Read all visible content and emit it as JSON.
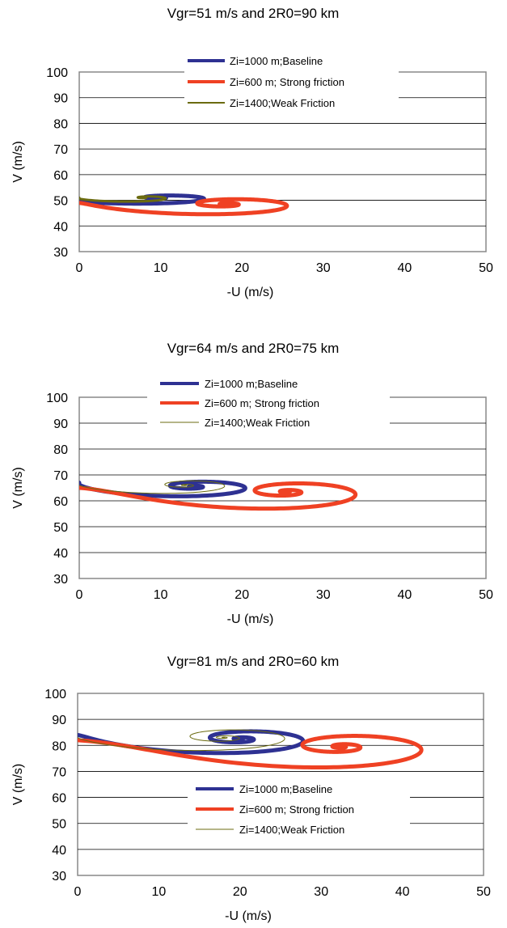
{
  "colors": {
    "baseline": "#2e3192",
    "strong": "#ef4123",
    "weak": "#6b6b10",
    "grid": "#000000",
    "frame": "#888888"
  },
  "chart_data": [
    {
      "type": "line",
      "title": "Vgr=51 m/s and 2R0=90 km",
      "xlabel": "-U (m/s)",
      "ylabel": "V (m/s)",
      "xlim": [
        0,
        50
      ],
      "ylim": [
        30,
        100
      ],
      "xticks": [
        0,
        10,
        20,
        30,
        40,
        50
      ],
      "yticks": [
        30,
        40,
        50,
        60,
        70,
        80,
        90,
        100
      ],
      "grid": "horizontal",
      "legend_position": "top-center",
      "spirals": [
        {
          "name": "Zi=1000 m;Baseline",
          "color": "#2e3192",
          "width": 5,
          "start": [
            0,
            50
          ],
          "center": [
            10,
            51
          ],
          "a0": 15.0,
          "b0": 4.0,
          "decay": 2.1,
          "turns": 4.0
        },
        {
          "name": "Zi=600 m; Strong friction",
          "color": "#ef4123",
          "width": 5,
          "start": [
            0,
            49
          ],
          "center": [
            18,
            48.5
          ],
          "a0": 16.0,
          "b0": 6.0,
          "decay": 1.55,
          "turns": 3.0
        },
        {
          "name": "Zi=1400;Weak Friction",
          "color": "#6b6b10",
          "width": 3,
          "start": [
            0,
            51
          ],
          "center": [
            8,
            51
          ],
          "a0": 10.0,
          "b0": 3.3,
          "decay": 2.6,
          "turns": 5.0
        }
      ],
      "legend": [
        {
          "label": "Zi=1000 m;Baseline",
          "color": "#2e3192",
          "width": 4
        },
        {
          "label": "Zi=600 m; Strong friction",
          "color": "#ef4123",
          "width": 4
        },
        {
          "label": "Zi=1400;Weak Friction",
          "color": "#6b6b10",
          "width": 2
        }
      ]
    },
    {
      "type": "line",
      "title": "Vgr=64 m/s and 2R0=75 km",
      "xlabel": "-U (m/s)",
      "ylabel": "V (m/s)",
      "xlim": [
        0,
        50
      ],
      "ylim": [
        30,
        100
      ],
      "xticks": [
        0,
        10,
        20,
        30,
        40,
        50
      ],
      "yticks": [
        30,
        40,
        50,
        60,
        70,
        80,
        90,
        100
      ],
      "grid": "horizontal",
      "legend_position": "top-center",
      "spirals": [
        {
          "name": "Zi=1000 m;Baseline",
          "color": "#2e3192",
          "width": 5,
          "start": [
            0,
            67
          ],
          "center": [
            14,
            65.5
          ],
          "a0": 15.0,
          "b0": 6.5,
          "decay": 1.7,
          "turns": 4.0
        },
        {
          "name": "Zi=600 m; Strong friction",
          "color": "#ef4123",
          "width": 5,
          "start": [
            0,
            65
          ],
          "center": [
            25.5,
            63.5
          ],
          "a0": 18.0,
          "b0": 10.0,
          "decay": 1.55,
          "turns": 3.0
        },
        {
          "name": "Zi=1400;Weak Friction",
          "color": "#6b6b10",
          "width": 1,
          "start": [
            0,
            66
          ],
          "center": [
            13,
            66
          ],
          "a0": 13.0,
          "b0": 6.0,
          "decay": 1.7,
          "turns": 6.0
        }
      ],
      "legend": [
        {
          "label": "Zi=1000 m;Baseline",
          "color": "#2e3192",
          "width": 4
        },
        {
          "label": "Zi=600 m; Strong friction",
          "color": "#ef4123",
          "width": 4
        },
        {
          "label": "Zi=1400;Weak Friction",
          "color": "#6b6b10",
          "width": 1
        }
      ]
    },
    {
      "type": "line",
      "title": "Vgr=81 m/s and 2R0=60 km",
      "xlabel": "-U (m/s)",
      "ylabel": "V (m/s)",
      "xlim": [
        0,
        50
      ],
      "ylim": [
        30,
        100
      ],
      "xticks": [
        0,
        10,
        20,
        30,
        40,
        50
      ],
      "yticks": [
        30,
        40,
        50,
        60,
        70,
        80,
        90,
        100
      ],
      "grid": "horizontal",
      "legend_position": "bottom-center",
      "spirals": [
        {
          "name": "Zi=1000 m;Baseline",
          "color": "#2e3192",
          "width": 5,
          "start": [
            0,
            84
          ],
          "center": [
            20,
            82.5
          ],
          "a0": 17.0,
          "b0": 9.0,
          "decay": 1.55,
          "turns": 4.0
        },
        {
          "name": "Zi=600 m; Strong friction",
          "color": "#ef4123",
          "width": 5,
          "start": [
            0,
            82
          ],
          "center": [
            32.5,
            79.5
          ],
          "a0": 20.0,
          "b0": 12.0,
          "decay": 1.45,
          "turns": 3.0
        },
        {
          "name": "Zi=1400;Weak Friction",
          "color": "#6b6b10",
          "width": 1,
          "start": [
            0,
            83
          ],
          "center": [
            18,
            83
          ],
          "a0": 18.0,
          "b0": 9.0,
          "decay": 1.5,
          "turns": 6.0
        }
      ],
      "legend": [
        {
          "label": "Zi=1000 m;Baseline",
          "color": "#2e3192",
          "width": 4
        },
        {
          "label": "Zi=600 m; Strong friction",
          "color": "#ef4123",
          "width": 4
        },
        {
          "label": "Zi=1400;Weak Friction",
          "color": "#6b6b10",
          "width": 1
        }
      ]
    }
  ]
}
